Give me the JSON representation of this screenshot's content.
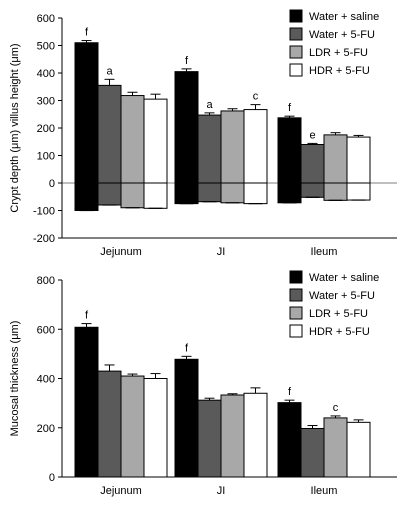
{
  "chart_data": [
    {
      "type": "bar",
      "ylabel": "Crypt depth (μm) villus height (μm)",
      "ylim": [
        -200,
        600
      ],
      "yticks": [
        -200,
        -100,
        0,
        100,
        200,
        300,
        400,
        500,
        600
      ],
      "categories": [
        "Jejunum",
        "JI",
        "Ileum"
      ],
      "legend": {
        "placement": "top-right"
      },
      "series": [
        {
          "name": "Water + saline",
          "color": "#000000",
          "values": [
            510,
            405,
            237
          ],
          "neg_values": [
            -100,
            -75,
            -72
          ],
          "errors": [
            8,
            10,
            6
          ],
          "annotations": [
            "f",
            "f",
            "f"
          ]
        },
        {
          "name": "Water + 5-FU",
          "color": "#5a5a5a",
          "values": [
            355,
            247,
            140
          ],
          "neg_values": [
            -80,
            -68,
            -52
          ],
          "errors": [
            22,
            8,
            4
          ],
          "annotations": [
            "a",
            "a",
            "e"
          ]
        },
        {
          "name": "LDR + 5-FU",
          "color": "#a8a8a8",
          "values": [
            318,
            262,
            175
          ],
          "neg_values": [
            -90,
            -72,
            -63
          ],
          "errors": [
            12,
            8,
            8
          ],
          "annotations": [
            "",
            "",
            ""
          ]
        },
        {
          "name": "HDR + 5-FU",
          "color": "#ffffff",
          "values": [
            305,
            267,
            167
          ],
          "neg_values": [
            -92,
            -75,
            -62
          ],
          "errors": [
            18,
            18,
            6
          ],
          "annotations": [
            "",
            "c",
            ""
          ]
        }
      ]
    },
    {
      "type": "bar",
      "ylabel": "Mucosal thickness (μm)",
      "ylim": [
        0,
        800
      ],
      "yticks": [
        0,
        200,
        400,
        600,
        800
      ],
      "categories": [
        "Jejunum",
        "JI",
        "Ileum"
      ],
      "legend": {
        "placement": "top-right"
      },
      "series": [
        {
          "name": "Water + saline",
          "color": "#000000",
          "values": [
            608,
            478,
            302
          ],
          "errors": [
            15,
            12,
            10
          ],
          "annotations": [
            "f",
            "f",
            "f"
          ]
        },
        {
          "name": "Water + 5-FU",
          "color": "#5a5a5a",
          "values": [
            430,
            312,
            197
          ],
          "errors": [
            25,
            8,
            12
          ],
          "annotations": [
            "",
            "",
            ""
          ]
        },
        {
          "name": "LDR + 5-FU",
          "color": "#a8a8a8",
          "values": [
            410,
            333,
            240
          ],
          "errors": [
            8,
            5,
            8
          ],
          "annotations": [
            "",
            "",
            "c"
          ]
        },
        {
          "name": "HDR + 5-FU",
          "color": "#ffffff",
          "values": [
            400,
            340,
            222
          ],
          "errors": [
            20,
            22,
            10
          ],
          "annotations": [
            "",
            "",
            ""
          ]
        }
      ]
    }
  ]
}
